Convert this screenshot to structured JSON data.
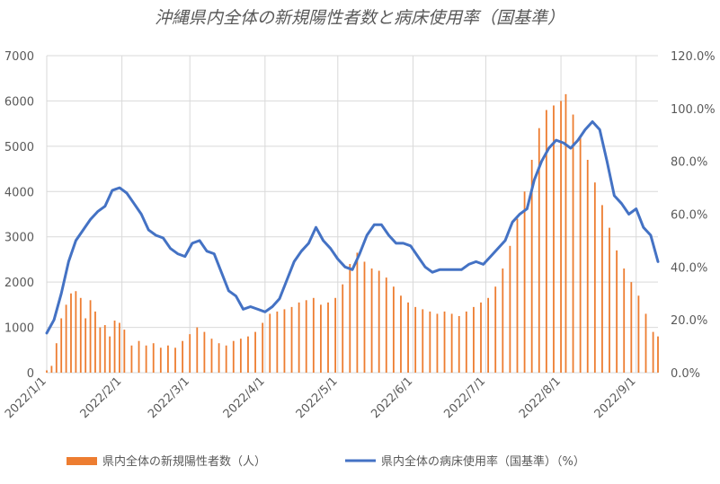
{
  "chart_data": {
    "type": "bar+line",
    "title": "沖縄県内全体の新規陽性者数と病床使用率（国基準）",
    "y_left": {
      "ticks": [
        "0",
        "1000",
        "2000",
        "3000",
        "4000",
        "5000",
        "6000",
        "7000"
      ],
      "ylim": [
        0,
        7000
      ]
    },
    "y_right": {
      "ticks": [
        "0.0%",
        "20.0%",
        "40.0%",
        "60.0%",
        "80.0%",
        "100.0%",
        "120.0%"
      ],
      "ylim": [
        0,
        120
      ]
    },
    "x_date_range": [
      "2022-01-01",
      "2022-09-10"
    ],
    "x_ticks": [
      "2022/1/1",
      "2022/2/1",
      "2022/3/1",
      "2022/4/1",
      "2022/5/1",
      "2022/6/1",
      "2022/7/1",
      "2022/8/1",
      "2022/9/1"
    ],
    "grid": true,
    "legend_position": "bottom",
    "series": [
      {
        "name": "県内全体の新規陽性者数（人）",
        "type": "bar",
        "axis": "left",
        "color": "#ED7D31",
        "points": [
          [
            "2022-01-01",
            50
          ],
          [
            "2022-01-03",
            150
          ],
          [
            "2022-01-05",
            650
          ],
          [
            "2022-01-07",
            1200
          ],
          [
            "2022-01-09",
            1500
          ],
          [
            "2022-01-11",
            1750
          ],
          [
            "2022-01-13",
            1800
          ],
          [
            "2022-01-15",
            1650
          ],
          [
            "2022-01-17",
            1200
          ],
          [
            "2022-01-19",
            1600
          ],
          [
            "2022-01-21",
            1350
          ],
          [
            "2022-01-23",
            1000
          ],
          [
            "2022-01-25",
            1050
          ],
          [
            "2022-01-27",
            800
          ],
          [
            "2022-01-29",
            1150
          ],
          [
            "2022-01-31",
            1100
          ],
          [
            "2022-02-02",
            950
          ],
          [
            "2022-02-05",
            600
          ],
          [
            "2022-02-08",
            700
          ],
          [
            "2022-02-11",
            600
          ],
          [
            "2022-02-14",
            650
          ],
          [
            "2022-02-17",
            550
          ],
          [
            "2022-02-20",
            600
          ],
          [
            "2022-02-23",
            550
          ],
          [
            "2022-02-26",
            700
          ],
          [
            "2022-03-01",
            850
          ],
          [
            "2022-03-04",
            1000
          ],
          [
            "2022-03-07",
            900
          ],
          [
            "2022-03-10",
            750
          ],
          [
            "2022-03-13",
            650
          ],
          [
            "2022-03-16",
            600
          ],
          [
            "2022-03-19",
            700
          ],
          [
            "2022-03-22",
            750
          ],
          [
            "2022-03-25",
            800
          ],
          [
            "2022-03-28",
            900
          ],
          [
            "2022-03-31",
            1100
          ],
          [
            "2022-04-03",
            1300
          ],
          [
            "2022-04-06",
            1350
          ],
          [
            "2022-04-09",
            1400
          ],
          [
            "2022-04-12",
            1450
          ],
          [
            "2022-04-15",
            1550
          ],
          [
            "2022-04-18",
            1600
          ],
          [
            "2022-04-21",
            1650
          ],
          [
            "2022-04-24",
            1500
          ],
          [
            "2022-04-27",
            1550
          ],
          [
            "2022-04-30",
            1650
          ],
          [
            "2022-05-03",
            1950
          ],
          [
            "2022-05-06",
            2400
          ],
          [
            "2022-05-09",
            2650
          ],
          [
            "2022-05-12",
            2450
          ],
          [
            "2022-05-15",
            2300
          ],
          [
            "2022-05-18",
            2250
          ],
          [
            "2022-05-21",
            2100
          ],
          [
            "2022-05-24",
            1900
          ],
          [
            "2022-05-27",
            1700
          ],
          [
            "2022-05-30",
            1550
          ],
          [
            "2022-06-02",
            1450
          ],
          [
            "2022-06-05",
            1400
          ],
          [
            "2022-06-08",
            1350
          ],
          [
            "2022-06-11",
            1300
          ],
          [
            "2022-06-14",
            1350
          ],
          [
            "2022-06-17",
            1300
          ],
          [
            "2022-06-20",
            1250
          ],
          [
            "2022-06-23",
            1350
          ],
          [
            "2022-06-26",
            1450
          ],
          [
            "2022-06-29",
            1550
          ],
          [
            "2022-07-02",
            1650
          ],
          [
            "2022-07-05",
            1900
          ],
          [
            "2022-07-08",
            2300
          ],
          [
            "2022-07-11",
            2800
          ],
          [
            "2022-07-14",
            3400
          ],
          [
            "2022-07-17",
            4000
          ],
          [
            "2022-07-20",
            4700
          ],
          [
            "2022-07-23",
            5400
          ],
          [
            "2022-07-26",
            5800
          ],
          [
            "2022-07-29",
            5900
          ],
          [
            "2022-08-01",
            6000
          ],
          [
            "2022-08-03",
            6150
          ],
          [
            "2022-08-06",
            5700
          ],
          [
            "2022-08-09",
            5200
          ],
          [
            "2022-08-12",
            4700
          ],
          [
            "2022-08-15",
            4200
          ],
          [
            "2022-08-18",
            3700
          ],
          [
            "2022-08-21",
            3200
          ],
          [
            "2022-08-24",
            2700
          ],
          [
            "2022-08-27",
            2300
          ],
          [
            "2022-08-30",
            2000
          ],
          [
            "2022-09-02",
            1700
          ],
          [
            "2022-09-05",
            1300
          ],
          [
            "2022-09-08",
            900
          ],
          [
            "2022-09-10",
            800
          ]
        ]
      },
      {
        "name": "県内全体の病床使用率（国基準）（%）",
        "type": "line",
        "axis": "right",
        "color": "#4472C4",
        "points": [
          [
            "2022-01-01",
            15
          ],
          [
            "2022-01-04",
            20
          ],
          [
            "2022-01-07",
            30
          ],
          [
            "2022-01-10",
            42
          ],
          [
            "2022-01-13",
            50
          ],
          [
            "2022-01-16",
            54
          ],
          [
            "2022-01-19",
            58
          ],
          [
            "2022-01-22",
            61
          ],
          [
            "2022-01-25",
            63
          ],
          [
            "2022-01-28",
            69
          ],
          [
            "2022-01-31",
            70
          ],
          [
            "2022-02-03",
            68
          ],
          [
            "2022-02-06",
            64
          ],
          [
            "2022-02-09",
            60
          ],
          [
            "2022-02-12",
            54
          ],
          [
            "2022-02-15",
            52
          ],
          [
            "2022-02-18",
            51
          ],
          [
            "2022-02-21",
            47
          ],
          [
            "2022-02-24",
            45
          ],
          [
            "2022-02-27",
            44
          ],
          [
            "2022-03-02",
            49
          ],
          [
            "2022-03-05",
            50
          ],
          [
            "2022-03-08",
            46
          ],
          [
            "2022-03-11",
            45
          ],
          [
            "2022-03-14",
            38
          ],
          [
            "2022-03-17",
            31
          ],
          [
            "2022-03-20",
            29
          ],
          [
            "2022-03-23",
            24
          ],
          [
            "2022-03-26",
            25
          ],
          [
            "2022-03-29",
            24
          ],
          [
            "2022-04-01",
            23
          ],
          [
            "2022-04-04",
            25
          ],
          [
            "2022-04-07",
            28
          ],
          [
            "2022-04-10",
            35
          ],
          [
            "2022-04-13",
            42
          ],
          [
            "2022-04-16",
            46
          ],
          [
            "2022-04-19",
            49
          ],
          [
            "2022-04-22",
            55
          ],
          [
            "2022-04-25",
            50
          ],
          [
            "2022-04-28",
            47
          ],
          [
            "2022-05-01",
            43
          ],
          [
            "2022-05-04",
            40
          ],
          [
            "2022-05-07",
            39
          ],
          [
            "2022-05-10",
            45
          ],
          [
            "2022-05-13",
            52
          ],
          [
            "2022-05-16",
            56
          ],
          [
            "2022-05-19",
            56
          ],
          [
            "2022-05-22",
            52
          ],
          [
            "2022-05-25",
            49
          ],
          [
            "2022-05-28",
            49
          ],
          [
            "2022-05-31",
            48
          ],
          [
            "2022-06-03",
            44
          ],
          [
            "2022-06-06",
            40
          ],
          [
            "2022-06-09",
            38
          ],
          [
            "2022-06-12",
            39
          ],
          [
            "2022-06-15",
            39
          ],
          [
            "2022-06-18",
            39
          ],
          [
            "2022-06-21",
            39
          ],
          [
            "2022-06-24",
            41
          ],
          [
            "2022-06-27",
            42
          ],
          [
            "2022-06-30",
            41
          ],
          [
            "2022-07-03",
            44
          ],
          [
            "2022-07-06",
            47
          ],
          [
            "2022-07-09",
            50
          ],
          [
            "2022-07-12",
            57
          ],
          [
            "2022-07-15",
            60
          ],
          [
            "2022-07-18",
            62
          ],
          [
            "2022-07-21",
            73
          ],
          [
            "2022-07-24",
            80
          ],
          [
            "2022-07-27",
            85
          ],
          [
            "2022-07-30",
            88
          ],
          [
            "2022-08-02",
            87
          ],
          [
            "2022-08-05",
            85
          ],
          [
            "2022-08-08",
            88
          ],
          [
            "2022-08-11",
            92
          ],
          [
            "2022-08-14",
            95
          ],
          [
            "2022-08-17",
            92
          ],
          [
            "2022-08-20",
            80
          ],
          [
            "2022-08-23",
            67
          ],
          [
            "2022-08-26",
            64
          ],
          [
            "2022-08-29",
            60
          ],
          [
            "2022-09-01",
            62
          ],
          [
            "2022-09-04",
            55
          ],
          [
            "2022-09-07",
            52
          ],
          [
            "2022-09-10",
            42
          ]
        ]
      }
    ]
  }
}
